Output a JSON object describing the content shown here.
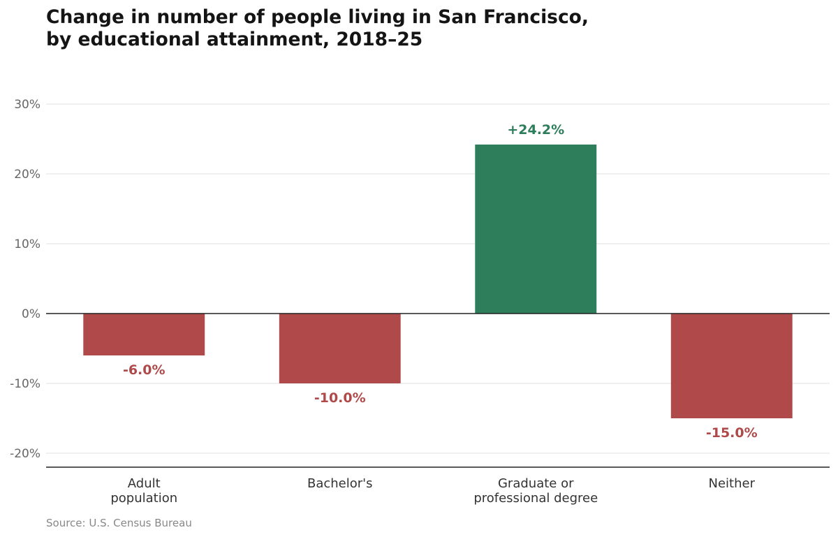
{
  "chart_data": {
    "type": "bar",
    "title_lines": [
      "Change in number of people living in San Francisco,",
      "by educational attainment, 2018–25"
    ],
    "categories": [
      [
        "Adult",
        "population"
      ],
      [
        "Bachelor's"
      ],
      [
        "Graduate or",
        "professional degree"
      ],
      [
        "Neither"
      ]
    ],
    "values": [
      -6.0,
      -10.0,
      24.2,
      -15.0
    ],
    "value_labels": [
      "-6.0%",
      "-10.0%",
      "+24.2%",
      "-15.0%"
    ],
    "ylim": [
      -22,
      32
    ],
    "yticks": [
      30,
      20,
      10,
      0,
      -10,
      -20
    ],
    "ytick_labels": [
      "30%",
      "20%",
      "10%",
      "0%",
      "-10%",
      "-20%"
    ],
    "grid": true,
    "colors": {
      "positive": "#2e7d5b",
      "negative": "#b04a4a",
      "grid": "#e2e2e2",
      "axis": "#222222",
      "tick_text": "#666666",
      "category_text": "#333333"
    },
    "source": "Source: U.S. Census Bureau"
  }
}
